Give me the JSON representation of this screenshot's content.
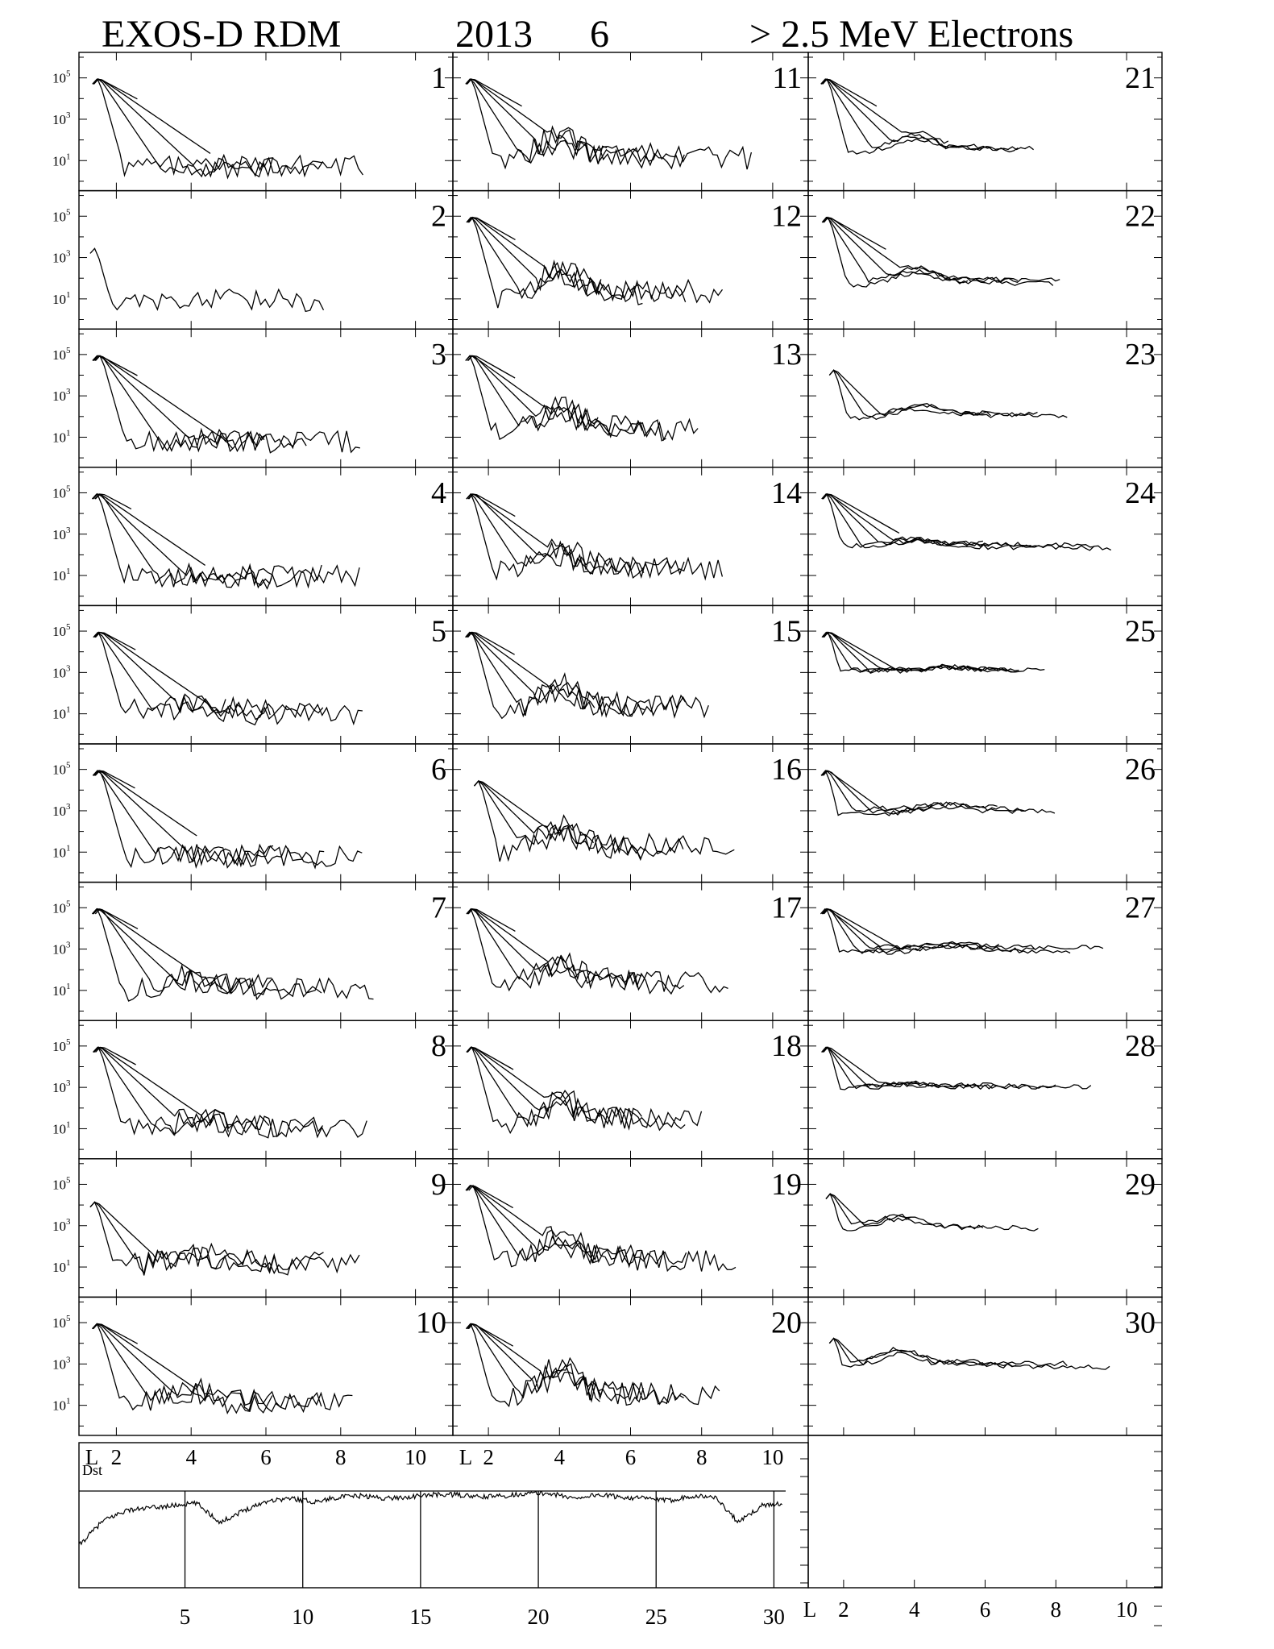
{
  "title": {
    "instrument": "EXOS-D RDM",
    "year": "2013",
    "month": "6",
    "species": "> 2.5  MeV Electrons"
  },
  "colors": {
    "line": "#000000",
    "background": "#ffffff"
  },
  "chart_data": {
    "type": "line",
    "layout": "small multiples, 3 columns, one panel per day",
    "x_axis": {
      "label": "L",
      "range": [
        1,
        11
      ],
      "ticks": [
        "2",
        "4",
        "6",
        "8",
        "10"
      ]
    },
    "y_axis": {
      "scale": "log",
      "range_exponents": [
        -0.3,
        6.0
      ],
      "ticks": [
        {
          "base": "10",
          "exp": "5",
          "value": 100000
        },
        {
          "base": "10",
          "exp": "3",
          "value": 1000
        },
        {
          "base": "10",
          "exp": "1",
          "value": 10
        }
      ]
    },
    "panels": [
      {
        "day": "1",
        "profile": 0
      },
      {
        "day": "2",
        "profile": 1
      },
      {
        "day": "3",
        "profile": 2
      },
      {
        "day": "4",
        "profile": 3
      },
      {
        "day": "5",
        "profile": 4
      },
      {
        "day": "6",
        "profile": 5
      },
      {
        "day": "7",
        "profile": 6
      },
      {
        "day": "8",
        "profile": 7
      },
      {
        "day": "9",
        "profile": 8
      },
      {
        "day": "10",
        "profile": 9
      },
      {
        "day": "11",
        "profile": 10
      },
      {
        "day": "12",
        "profile": 11
      },
      {
        "day": "13",
        "profile": 12
      },
      {
        "day": "14",
        "profile": 13
      },
      {
        "day": "15",
        "profile": 14
      },
      {
        "day": "16",
        "profile": 15
      },
      {
        "day": "17",
        "profile": 16
      },
      {
        "day": "18",
        "profile": 17
      },
      {
        "day": "19",
        "profile": 18
      },
      {
        "day": "20",
        "profile": 19
      },
      {
        "day": "21",
        "profile": 20
      },
      {
        "day": "22",
        "profile": 21
      },
      {
        "day": "23",
        "profile": 22
      },
      {
        "day": "24",
        "profile": 23
      },
      {
        "day": "25",
        "profile": 24
      },
      {
        "day": "26",
        "profile": 25
      },
      {
        "day": "27",
        "profile": 26
      },
      {
        "day": "28",
        "profile": 27
      },
      {
        "day": "29",
        "profile": 28
      },
      {
        "day": "30",
        "profile": 29
      }
    ],
    "profiles": [
      {
        "pass_count": 5,
        "peak": 5.0,
        "slot_level": 0.8,
        "belt": null,
        "lmax": [
          7.6,
          8.6,
          6.2,
          4.6,
          2.6
        ]
      },
      {
        "pass_count": 1,
        "peak": 3.5,
        "slot_level": 0.9,
        "belt": null,
        "lmax": [
          7.6
        ],
        "start_l": 1.3
      },
      {
        "pass_count": 5,
        "peak": 5.0,
        "slot_level": 0.8,
        "belt": null,
        "lmax": [
          7.2,
          8.6,
          6.0,
          5.2,
          2.6
        ]
      },
      {
        "pass_count": 5,
        "peak": 5.0,
        "slot_level": 0.9,
        "belt": null,
        "lmax": [
          7.5,
          8.6,
          6.2,
          4.4,
          2.4
        ]
      },
      {
        "pass_count": 5,
        "peak": 5.0,
        "slot_level": 1.0,
        "belt": {
          "l": 4.0,
          "level": 1.6
        },
        "lmax": [
          7.6,
          8.6,
          6.2,
          5.0,
          2.6
        ]
      },
      {
        "pass_count": 5,
        "peak": 5.0,
        "slot_level": 0.9,
        "belt": null,
        "lmax": [
          7.6,
          8.6,
          6.2,
          4.2,
          2.6
        ]
      },
      {
        "pass_count": 5,
        "peak": 5.0,
        "slot_level": 1.0,
        "belt": {
          "l": 3.8,
          "level": 1.8
        },
        "lmax": [
          7.6,
          8.9,
          6.2,
          5.0,
          2.6
        ]
      },
      {
        "pass_count": 5,
        "peak": 5.0,
        "slot_level": 1.0,
        "belt": {
          "l": 4.2,
          "level": 1.6
        },
        "lmax": [
          7.6,
          8.7,
          6.2,
          5.0,
          2.6
        ]
      },
      {
        "pass_count": 3,
        "peak": 4.2,
        "slot_level": 1.0,
        "belt": {
          "l": 4.0,
          "level": 1.9
        },
        "lmax": [
          7.6,
          8.6,
          6.4
        ],
        "start_l": 1.3
      },
      {
        "pass_count": 5,
        "peak": 5.0,
        "slot_level": 1.0,
        "belt": {
          "l": 4.0,
          "level": 1.9
        },
        "lmax": [
          7.6,
          8.4,
          6.2,
          4.6,
          2.6
        ]
      },
      {
        "pass_count": 5,
        "peak": 5.0,
        "slot_level": 1.0,
        "belt": {
          "l": 4.0,
          "level": 2.4
        },
        "lmax": [
          7.6,
          9.4,
          6.8,
          5.4,
          3.0
        ]
      },
      {
        "pass_count": 5,
        "peak": 5.0,
        "slot_level": 1.1,
        "belt": {
          "l": 4.0,
          "level": 2.6
        },
        "lmax": [
          7.6,
          8.6,
          6.4,
          5.2,
          2.8
        ]
      },
      {
        "pass_count": 5,
        "peak": 5.0,
        "slot_level": 1.1,
        "belt": {
          "l": 4.0,
          "level": 2.7
        },
        "lmax": [
          7.0,
          8.0,
          6.4,
          5.2,
          2.8
        ]
      },
      {
        "pass_count": 5,
        "peak": 5.0,
        "slot_level": 1.1,
        "belt": {
          "l": 4.0,
          "level": 2.5
        },
        "lmax": [
          7.6,
          8.6,
          6.4,
          5.0,
          2.8
        ]
      },
      {
        "pass_count": 5,
        "peak": 5.0,
        "slot_level": 1.1,
        "belt": {
          "l": 4.0,
          "level": 2.5
        },
        "lmax": [
          7.6,
          8.2,
          6.4,
          5.0,
          2.8
        ]
      },
      {
        "pass_count": 4,
        "peak": 4.5,
        "slot_level": 1.1,
        "belt": {
          "l": 4.0,
          "level": 2.3
        },
        "lmax": [
          7.6,
          9.0,
          6.4,
          5.0
        ],
        "start_l": 1.6
      },
      {
        "pass_count": 5,
        "peak": 5.0,
        "slot_level": 1.2,
        "belt": {
          "l": 4.0,
          "level": 2.4
        },
        "lmax": [
          7.6,
          8.8,
          6.4,
          5.0,
          2.8
        ]
      },
      {
        "pass_count": 5,
        "peak": 5.0,
        "slot_level": 1.2,
        "belt": {
          "l": 4.0,
          "level": 2.6
        },
        "lmax": [
          7.6,
          8.0,
          6.4,
          5.0,
          2.8
        ]
      },
      {
        "pass_count": 5,
        "peak": 5.0,
        "slot_level": 1.2,
        "belt": {
          "l": 4.0,
          "level": 2.6
        },
        "lmax": [
          7.6,
          9.0,
          6.4,
          5.2,
          2.8
        ]
      },
      {
        "pass_count": 5,
        "peak": 5.0,
        "slot_level": 1.2,
        "belt": {
          "l": 4.0,
          "level": 3.0
        },
        "lmax": [
          7.6,
          8.6,
          6.4,
          5.2,
          2.8
        ]
      },
      {
        "pass_count": 5,
        "peak": 5.0,
        "slot_level": 1.5,
        "belt": {
          "l": 4.0,
          "level": 2.4
        },
        "lmax": [
          7.0,
          7.4,
          6.2,
          5.0,
          3.0
        ]
      },
      {
        "pass_count": 5,
        "peak": 5.0,
        "slot_level": 1.7,
        "belt": {
          "l": 4.0,
          "level": 2.6
        },
        "lmax": [
          8.0,
          8.2,
          7.0,
          5.6,
          3.2
        ]
      },
      {
        "pass_count": 3,
        "peak": 4.3,
        "slot_level": 2.0,
        "belt": {
          "l": 4.2,
          "level": 2.7
        },
        "lmax": [
          8.4,
          7.6,
          6.2
        ],
        "start_l": 1.6
      },
      {
        "pass_count": 5,
        "peak": 5.0,
        "slot_level": 2.4,
        "belt": {
          "l": 4.0,
          "level": 2.8
        },
        "lmax": [
          9.2,
          9.6,
          7.4,
          6.0,
          3.6
        ]
      },
      {
        "pass_count": 5,
        "peak": 5.0,
        "slot_level": 3.0,
        "belt": {
          "l": 5.0,
          "level": 3.3
        },
        "lmax": [
          7.0,
          7.0,
          7.8,
          6.4,
          4.0
        ]
      },
      {
        "pass_count": 4,
        "peak": 5.0,
        "slot_level": 3.0,
        "belt": {
          "l": 5.0,
          "level": 3.4
        },
        "lmax": [
          8.0,
          7.2,
          6.4,
          4.6
        ]
      },
      {
        "pass_count": 5,
        "peak": 5.0,
        "slot_level": 3.0,
        "belt": {
          "l": 5.0,
          "level": 3.3
        },
        "lmax": [
          7.5,
          8.5,
          9.4,
          6.4,
          4.0
        ]
      },
      {
        "pass_count": 4,
        "peak": 5.0,
        "slot_level": 3.0,
        "belt": {
          "l": 4.0,
          "level": 3.2
        },
        "lmax": [
          9.1,
          8.0,
          6.4,
          4.2
        ]
      },
      {
        "pass_count": 3,
        "peak": 4.6,
        "slot_level": 2.9,
        "belt": {
          "l": 3.6,
          "level": 3.6
        },
        "lmax": [
          7.6,
          4.0,
          6.0
        ],
        "start_l": 1.5
      },
      {
        "pass_count": 3,
        "peak": 4.3,
        "slot_level": 2.8,
        "belt": {
          "l": 3.6,
          "level": 3.9
        },
        "lmax": [
          9.6,
          8.4,
          7.0
        ],
        "start_l": 1.6
      }
    ],
    "dst_panel": {
      "label": "Dst",
      "x_axis": {
        "range": [
          1,
          31
        ],
        "ticks": [
          "5",
          "10",
          "15",
          "20",
          "25",
          "30"
        ],
        "x_title": ""
      },
      "day_separators": [
        5.5,
        10.5,
        15.5,
        20.5,
        25.5,
        30.5
      ],
      "daily_dst": [
        -45,
        -25,
        -16,
        -14,
        -12,
        -10,
        -26,
        -16,
        -8,
        -6,
        -9,
        -5,
        -4,
        -6,
        -5,
        -3,
        -3,
        -5,
        -4,
        -2,
        -2,
        -6,
        -3,
        -5,
        -6,
        -8,
        -4,
        -5,
        -26,
        -12,
        -10
      ],
      "dst_range": [
        -60,
        10
      ]
    },
    "empty_panel_axis": {
      "label": "L",
      "ticks": [
        "2",
        "4",
        "6",
        "8",
        "10"
      ]
    }
  }
}
